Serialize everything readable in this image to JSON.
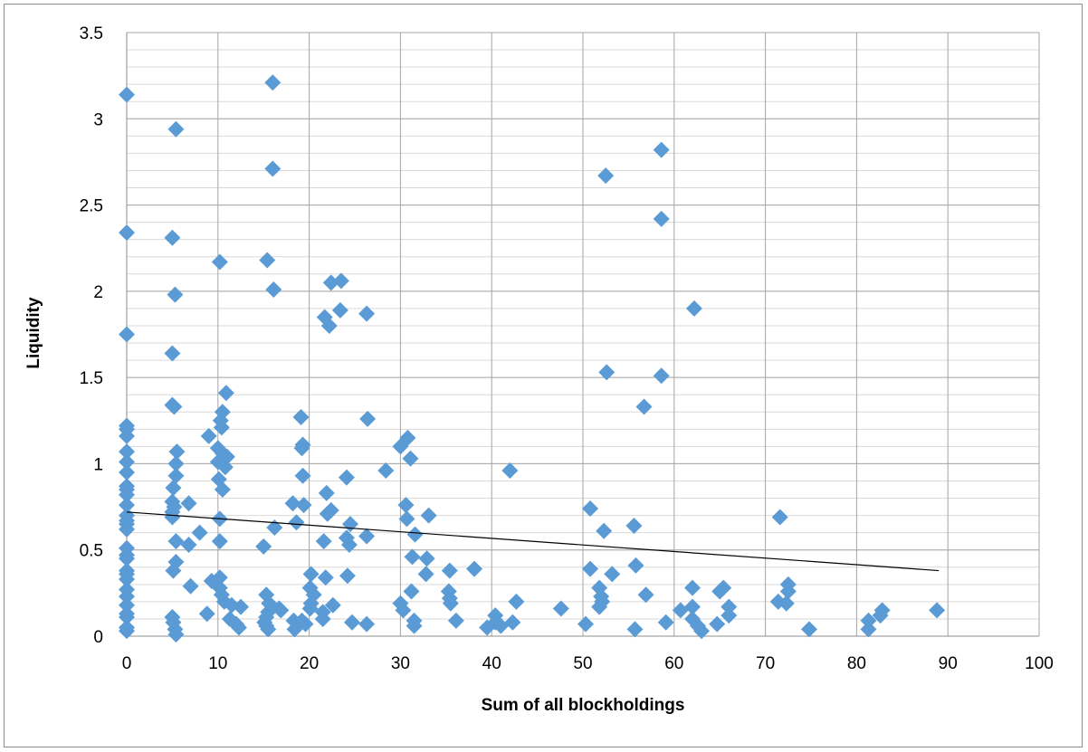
{
  "chart_data": {
    "type": "scatter",
    "title": "",
    "xlabel": "Sum of all blockholdings",
    "ylabel": "Liquidity",
    "xlim": [
      0,
      100
    ],
    "ylim": [
      0,
      3.5
    ],
    "x_ticks": [
      "0",
      "10",
      "20",
      "30",
      "40",
      "50",
      "60",
      "70",
      "80",
      "90",
      "100"
    ],
    "y_ticks": [
      "0",
      "0.5",
      "1",
      "1.5",
      "2",
      "2.5",
      "3",
      "3.5"
    ],
    "grid": {
      "major_vertical": true,
      "major_horizontal": true,
      "minor_horizontal_step": 0.1
    },
    "legend": "none",
    "marker_color": "#5b9bd5",
    "trendline": {
      "type": "linear",
      "color": "#000000",
      "x": [
        0,
        89
      ],
      "y": [
        0.72,
        0.38
      ]
    },
    "series": [
      {
        "marker": "diamond",
        "points": [
          [
            0,
            3.14
          ],
          [
            0,
            2.34
          ],
          [
            0,
            1.75
          ],
          [
            0,
            1.22
          ],
          [
            0,
            1.2
          ],
          [
            0,
            1.16
          ],
          [
            0,
            1.07
          ],
          [
            0,
            1.01
          ],
          [
            0,
            0.95
          ],
          [
            0,
            0.87
          ],
          [
            0,
            0.85
          ],
          [
            0,
            0.82
          ],
          [
            0,
            0.76
          ],
          [
            0,
            0.7
          ],
          [
            0,
            0.67
          ],
          [
            0,
            0.65
          ],
          [
            0,
            0.62
          ],
          [
            0,
            0.51
          ],
          [
            0,
            0.47
          ],
          [
            0,
            0.45
          ],
          [
            0,
            0.38
          ],
          [
            0,
            0.36
          ],
          [
            0,
            0.33
          ],
          [
            0,
            0.27
          ],
          [
            0,
            0.23
          ],
          [
            0,
            0.18
          ],
          [
            0,
            0.13
          ],
          [
            0,
            0.11
          ],
          [
            0,
            0.05
          ],
          [
            0,
            0.03
          ],
          [
            5.4,
            2.94
          ],
          [
            5,
            2.31
          ],
          [
            5.3,
            1.98
          ],
          [
            5,
            1.64
          ],
          [
            5,
            1.34
          ],
          [
            5.2,
            1.33
          ],
          [
            5.5,
            1.07
          ],
          [
            5.4,
            1.0
          ],
          [
            5.4,
            0.93
          ],
          [
            5.1,
            0.86
          ],
          [
            5,
            0.78
          ],
          [
            5.2,
            0.75
          ],
          [
            5,
            0.72
          ],
          [
            5,
            0.69
          ],
          [
            5.4,
            0.55
          ],
          [
            5.4,
            0.43
          ],
          [
            5.1,
            0.38
          ],
          [
            5,
            0.11
          ],
          [
            5.1,
            0.08
          ],
          [
            5.3,
            0.04
          ],
          [
            5.4,
            0.01
          ],
          [
            6.8,
            0.77
          ],
          [
            6.8,
            0.53
          ],
          [
            7,
            0.29
          ],
          [
            8,
            0.6
          ],
          [
            9,
            1.16
          ],
          [
            9.3,
            0.32
          ],
          [
            8.8,
            0.13
          ],
          [
            10.2,
            2.17
          ],
          [
            10.9,
            1.41
          ],
          [
            10.5,
            1.3
          ],
          [
            10.3,
            1.25
          ],
          [
            10.4,
            1.21
          ],
          [
            10,
            1.09
          ],
          [
            10.5,
            1.06
          ],
          [
            11,
            1.04
          ],
          [
            10,
            1.01
          ],
          [
            10.8,
            0.98
          ],
          [
            10.1,
            0.91
          ],
          [
            10.5,
            0.85
          ],
          [
            10.2,
            0.68
          ],
          [
            10.2,
            0.55
          ],
          [
            10.2,
            0.34
          ],
          [
            10.2,
            0.28
          ],
          [
            10.4,
            0.24
          ],
          [
            10.7,
            0.2
          ],
          [
            11.5,
            0.18
          ],
          [
            11.3,
            0.1
          ],
          [
            12,
            0.07
          ],
          [
            12.3,
            0.05
          ],
          [
            12.5,
            0.17
          ],
          [
            16,
            3.21
          ],
          [
            16,
            2.71
          ],
          [
            15.4,
            2.18
          ],
          [
            16.1,
            2.01
          ],
          [
            16.2,
            0.63
          ],
          [
            15,
            0.52
          ],
          [
            15.3,
            0.24
          ],
          [
            15.6,
            0.19
          ],
          [
            15.5,
            0.14
          ],
          [
            15.3,
            0.11
          ],
          [
            15.1,
            0.08
          ],
          [
            15.3,
            0.06
          ],
          [
            15.5,
            0.04
          ],
          [
            16.7,
            0.16
          ],
          [
            16.9,
            0.15
          ],
          [
            18.2,
            0.77
          ],
          [
            18.6,
            0.66
          ],
          [
            18.3,
            0.09
          ],
          [
            18.4,
            0.04
          ],
          [
            19.1,
            1.27
          ],
          [
            19.3,
            1.11
          ],
          [
            19.2,
            1.09
          ],
          [
            19.3,
            0.93
          ],
          [
            19.4,
            0.76
          ],
          [
            19.2,
            0.09
          ],
          [
            19.6,
            0.07
          ],
          [
            20.2,
            0.36
          ],
          [
            20.1,
            0.28
          ],
          [
            20.5,
            0.24
          ],
          [
            20.2,
            0.19
          ],
          [
            20.1,
            0.16
          ],
          [
            21.6,
            0.55
          ],
          [
            21.8,
            0.34
          ],
          [
            21.5,
            0.14
          ],
          [
            21.5,
            0.1
          ],
          [
            21.7,
            1.85
          ],
          [
            22.2,
            1.8
          ],
          [
            21.9,
            0.83
          ],
          [
            22,
            0.71
          ],
          [
            22.4,
            0.73
          ],
          [
            22.4,
            2.05
          ],
          [
            22.6,
            0.18
          ],
          [
            23.5,
            2.06
          ],
          [
            23.4,
            1.89
          ],
          [
            24.1,
            0.92
          ],
          [
            24.5,
            0.65
          ],
          [
            24.1,
            0.57
          ],
          [
            24.4,
            0.53
          ],
          [
            24.2,
            0.35
          ],
          [
            24.7,
            0.08
          ],
          [
            26.3,
            1.87
          ],
          [
            26.4,
            1.26
          ],
          [
            26.3,
            0.58
          ],
          [
            26.3,
            0.07
          ],
          [
            28.4,
            0.96
          ],
          [
            30,
            1.1
          ],
          [
            30.8,
            1.15
          ],
          [
            31.1,
            1.03
          ],
          [
            30.6,
            0.76
          ],
          [
            30.7,
            0.68
          ],
          [
            31.6,
            0.59
          ],
          [
            31.3,
            0.46
          ],
          [
            31.2,
            0.26
          ],
          [
            30,
            0.19
          ],
          [
            30.3,
            0.15
          ],
          [
            31.5,
            0.09
          ],
          [
            31.5,
            0.06
          ],
          [
            33.1,
            0.7
          ],
          [
            32.9,
            0.45
          ],
          [
            32.8,
            0.36
          ],
          [
            35.4,
            0.38
          ],
          [
            35.3,
            0.26
          ],
          [
            35.4,
            0.22
          ],
          [
            35.5,
            0.19
          ],
          [
            36.1,
            0.09
          ],
          [
            38.1,
            0.39
          ],
          [
            39.5,
            0.05
          ],
          [
            40.4,
            0.12
          ],
          [
            40.4,
            0.08
          ],
          [
            41,
            0.06
          ],
          [
            42,
            0.96
          ],
          [
            42.7,
            0.2
          ],
          [
            42.3,
            0.08
          ],
          [
            47.6,
            0.16
          ],
          [
            50.3,
            0.07
          ],
          [
            50.8,
            0.74
          ],
          [
            50.8,
            0.39
          ],
          [
            51.8,
            0.28
          ],
          [
            52,
            0.23
          ],
          [
            52.1,
            0.2
          ],
          [
            51.8,
            0.17
          ],
          [
            52.3,
            0.61
          ],
          [
            52.5,
            2.67
          ],
          [
            52.6,
            1.53
          ],
          [
            53.2,
            0.36
          ],
          [
            55.6,
            0.64
          ],
          [
            55.8,
            0.41
          ],
          [
            55.7,
            0.04
          ],
          [
            56.7,
            1.33
          ],
          [
            56.9,
            0.24
          ],
          [
            58.6,
            2.82
          ],
          [
            58.6,
            2.42
          ],
          [
            58.6,
            1.51
          ],
          [
            59.1,
            0.08
          ],
          [
            60.7,
            0.15
          ],
          [
            62.2,
            1.9
          ],
          [
            62,
            0.28
          ],
          [
            62,
            0.17
          ],
          [
            62,
            0.1
          ],
          [
            62.6,
            0.06
          ],
          [
            63,
            0.03
          ],
          [
            64.7,
            0.07
          ],
          [
            65,
            0.26
          ],
          [
            65.4,
            0.28
          ],
          [
            66,
            0.17
          ],
          [
            66,
            0.12
          ],
          [
            71.6,
            0.69
          ],
          [
            71.4,
            0.2
          ],
          [
            72.3,
            0.19
          ],
          [
            72.5,
            0.26
          ],
          [
            72.5,
            0.3
          ],
          [
            74.8,
            0.04
          ],
          [
            81.3,
            0.09
          ],
          [
            81.3,
            0.04
          ],
          [
            82.6,
            0.12
          ],
          [
            82.8,
            0.15
          ],
          [
            88.8,
            0.15
          ]
        ]
      }
    ]
  }
}
